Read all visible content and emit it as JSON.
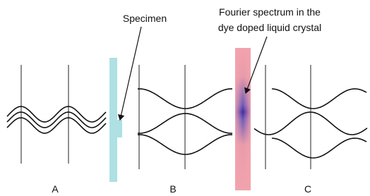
{
  "annotations": {
    "specimen": "Specimen",
    "fourier_lines": [
      "Fourier spectrum in the",
      "dye doped liquid crystal"
    ]
  },
  "stages": [
    "A",
    "B",
    "C"
  ]
}
